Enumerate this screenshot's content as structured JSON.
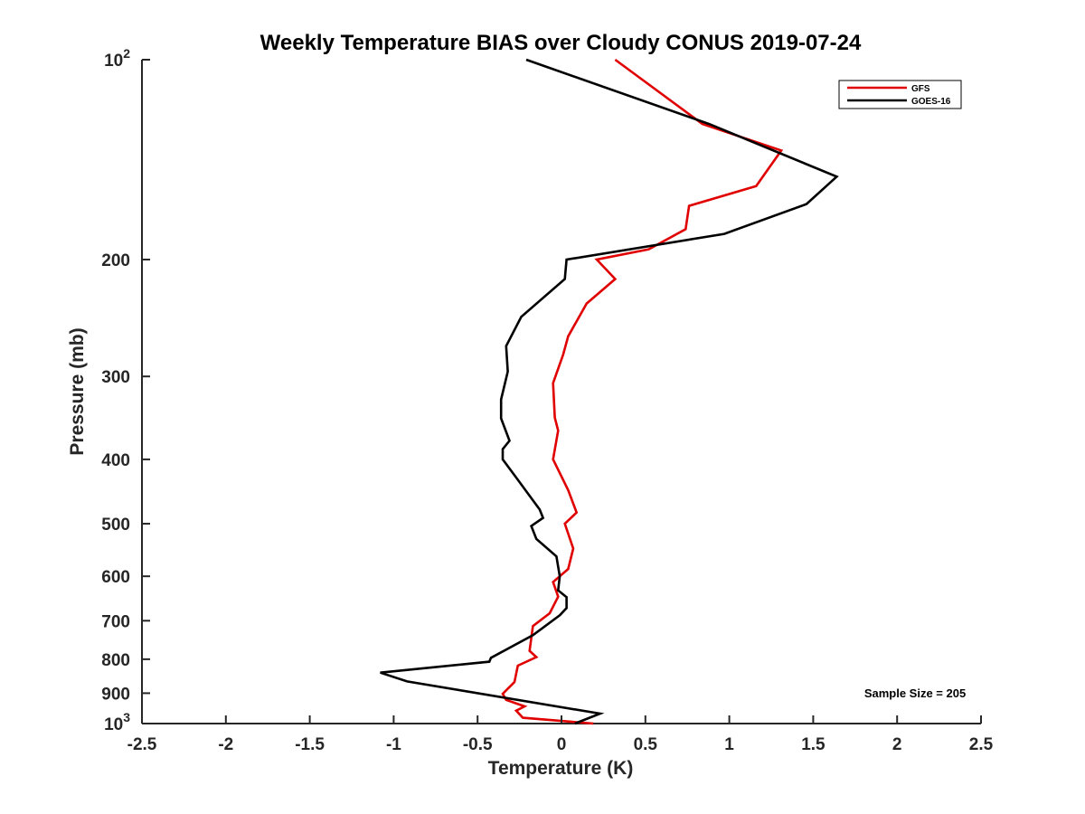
{
  "chart_data": {
    "type": "line",
    "title": "Weekly Temperature BIAS over Cloudy CONUS 2019-07-24",
    "xlabel": "Temperature (K)",
    "ylabel": "Pressure (mb)",
    "xlim": [
      -2.5,
      2.5
    ],
    "ylim": [
      100,
      1000
    ],
    "y_scale": "log",
    "y_reversed": true,
    "grid": false,
    "legend_position": "top-right",
    "x_ticks": [
      -2.5,
      -2,
      -1.5,
      -1,
      -0.5,
      0,
      0.5,
      1,
      1.5,
      2,
      2.5
    ],
    "x_tick_labels": [
      "-2.5",
      "-2",
      "-1.5",
      "-1",
      "-0.5",
      "0",
      "0.5",
      "1",
      "1.5",
      "2",
      "2.5"
    ],
    "y_ticks": [
      100,
      200,
      300,
      400,
      500,
      600,
      700,
      800,
      900,
      1000
    ],
    "y_tick_labels": [
      {
        "base": "10",
        "exp": "2"
      },
      {
        "base": "200"
      },
      {
        "base": "300"
      },
      {
        "base": "400"
      },
      {
        "base": "500"
      },
      {
        "base": "600"
      },
      {
        "base": "700"
      },
      {
        "base": "800"
      },
      {
        "base": "900"
      },
      {
        "base": "10",
        "exp": "3"
      }
    ],
    "annotation": "Sample Size = 205",
    "series": [
      {
        "name": "GFS",
        "color": "#e00000",
        "points": [
          [
            0.32,
            100
          ],
          [
            0.84,
            125
          ],
          [
            1.31,
            137
          ],
          [
            1.16,
            155
          ],
          [
            0.76,
            166
          ],
          [
            0.74,
            180
          ],
          [
            0.52,
            193
          ],
          [
            0.21,
            200
          ],
          [
            0.32,
            214
          ],
          [
            0.15,
            233
          ],
          [
            0.04,
            261
          ],
          [
            0.01,
            278
          ],
          [
            -0.05,
            307
          ],
          [
            -0.04,
            346
          ],
          [
            -0.02,
            362
          ],
          [
            -0.05,
            400
          ],
          [
            0.04,
            445
          ],
          [
            0.09,
            481
          ],
          [
            0.02,
            500
          ],
          [
            0.07,
            545
          ],
          [
            0.04,
            585
          ],
          [
            -0.05,
            612
          ],
          [
            -0.02,
            644
          ],
          [
            -0.07,
            682
          ],
          [
            -0.17,
            713
          ],
          [
            -0.19,
            777
          ],
          [
            -0.15,
            794
          ],
          [
            -0.26,
            818
          ],
          [
            -0.28,
            866
          ],
          [
            -0.35,
            902
          ],
          [
            -0.33,
            921
          ],
          [
            -0.22,
            942
          ],
          [
            -0.27,
            956
          ],
          [
            -0.23,
            980
          ],
          [
            0.19,
            1000
          ]
        ]
      },
      {
        "name": "GOES-16",
        "color": "#000000",
        "points": [
          [
            -0.21,
            100
          ],
          [
            0.88,
            125
          ],
          [
            1.64,
            150
          ],
          [
            1.46,
            165
          ],
          [
            0.97,
            183
          ],
          [
            0.03,
            200
          ],
          [
            0.02,
            214
          ],
          [
            -0.24,
            244
          ],
          [
            -0.33,
            270
          ],
          [
            -0.32,
            295
          ],
          [
            -0.36,
            325
          ],
          [
            -0.36,
            347
          ],
          [
            -0.31,
            375
          ],
          [
            -0.35,
            386
          ],
          [
            -0.35,
            400
          ],
          [
            -0.27,
            426
          ],
          [
            -0.13,
            476
          ],
          [
            -0.11,
            490
          ],
          [
            -0.18,
            504
          ],
          [
            -0.15,
            527
          ],
          [
            -0.03,
            560
          ],
          [
            -0.01,
            600
          ],
          [
            -0.02,
            630
          ],
          [
            0.03,
            645
          ],
          [
            0.03,
            670
          ],
          [
            -0.01,
            687
          ],
          [
            -0.17,
            736
          ],
          [
            -0.42,
            796
          ],
          [
            -0.43,
            807
          ],
          [
            -1.08,
            838
          ],
          [
            -0.92,
            864
          ],
          [
            0.23,
            966
          ],
          [
            0.08,
            1000
          ]
        ]
      }
    ]
  }
}
